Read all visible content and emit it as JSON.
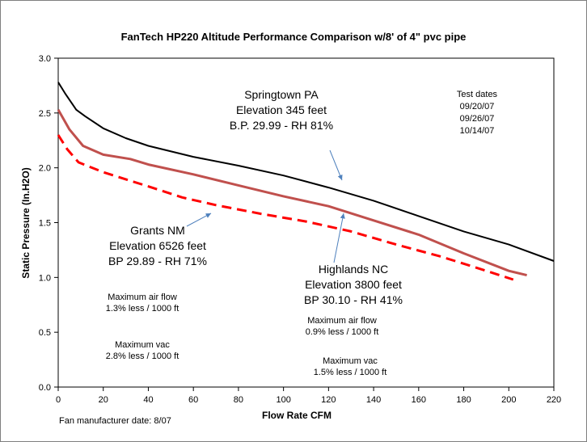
{
  "chart_data": {
    "type": "line",
    "title": "FanTech HP220  Altitude Performance Comparison w/8' of 4\" pvc pipe",
    "xlabel": "Flow Rate  CFM",
    "ylabel": "Static Pressure (In.H2O)",
    "xlim": [
      0,
      220
    ],
    "ylim": [
      0,
      3.0
    ],
    "xticks": [
      "0",
      "20",
      "40",
      "60",
      "80",
      "100",
      "120",
      "140",
      "160",
      "180",
      "200",
      "220"
    ],
    "yticks": [
      "0.0",
      "0.5",
      "1.0",
      "1.5",
      "2.0",
      "2.5",
      "3.0"
    ],
    "grid": false,
    "series": [
      {
        "color": "#000000",
        "dash": "solid",
        "points": [
          [
            0,
            2.78
          ],
          [
            3,
            2.68
          ],
          [
            8,
            2.53
          ],
          [
            12,
            2.47
          ],
          [
            20,
            2.36
          ],
          [
            30,
            2.27
          ],
          [
            40,
            2.2
          ],
          [
            60,
            2.1
          ],
          [
            80,
            2.02
          ],
          [
            100,
            1.93
          ],
          [
            120,
            1.82
          ],
          [
            140,
            1.7
          ],
          [
            160,
            1.56
          ],
          [
            180,
            1.42
          ],
          [
            200,
            1.3
          ],
          [
            220,
            1.15
          ]
        ]
      },
      {
        "color": "#c0504d",
        "dash": "solid",
        "points": [
          [
            0,
            2.53
          ],
          [
            5,
            2.35
          ],
          [
            11,
            2.2
          ],
          [
            20,
            2.12
          ],
          [
            32,
            2.08
          ],
          [
            40,
            2.03
          ],
          [
            60,
            1.94
          ],
          [
            80,
            1.84
          ],
          [
            100,
            1.74
          ],
          [
            120,
            1.65
          ],
          [
            140,
            1.52
          ],
          [
            160,
            1.39
          ],
          [
            180,
            1.22
          ],
          [
            200,
            1.06
          ],
          [
            208,
            1.02
          ]
        ]
      },
      {
        "color": "#ff0000",
        "dash": "dashed",
        "points": [
          [
            0,
            2.3
          ],
          [
            4,
            2.17
          ],
          [
            9,
            2.05
          ],
          [
            20,
            1.96
          ],
          [
            40,
            1.83
          ],
          [
            55,
            1.73
          ],
          [
            70,
            1.66
          ],
          [
            90,
            1.58
          ],
          [
            110,
            1.51
          ],
          [
            130,
            1.42
          ],
          [
            150,
            1.3
          ],
          [
            170,
            1.19
          ],
          [
            190,
            1.06
          ],
          [
            202,
            0.98
          ]
        ]
      }
    ],
    "annotations": {
      "springtown": [
        "Springtown PA",
        "Elevation 345 feet",
        "B.P. 29.99 - RH 81%"
      ],
      "test_dates": [
        "Test dates",
        "09/20/07",
        "09/26/07",
        "10/14/07"
      ],
      "grants": [
        "Grants NM",
        "Elevation 6526 feet",
        "BP 29.89 - RH 71%"
      ],
      "highlands": [
        "Highlands NC",
        "Elevation 3800 feet",
        "BP 30.10 -  RH 41%"
      ],
      "left_air": [
        "Maximum air flow",
        "1.3% less / 1000 ft"
      ],
      "left_vac": [
        "Maximum vac",
        "2.8% less / 1000 ft"
      ],
      "right_air": [
        "Maximum air flow",
        "0.9% less / 1000 ft"
      ],
      "right_vac": [
        "Maximum vac",
        "1.5% less / 1000 ft"
      ],
      "footnote": "Fan manufacturer date: 8/07"
    }
  }
}
